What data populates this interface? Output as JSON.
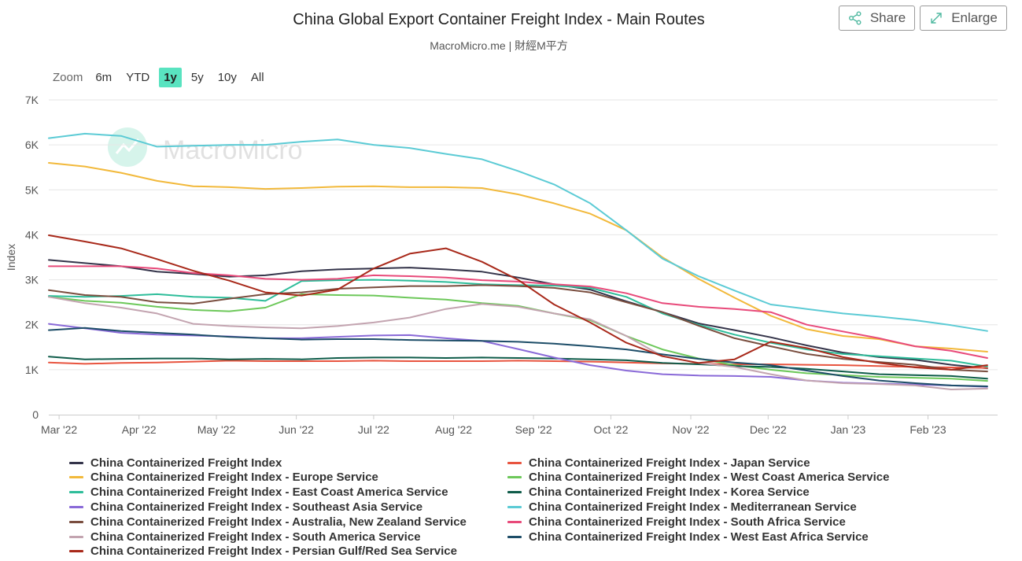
{
  "header": {
    "title": "China Global Export Container Freight Index - Main Routes",
    "subtitle": "MacroMicro.me | 財經M平方",
    "share_label": "Share",
    "enlarge_label": "Enlarge",
    "watermark": "MacroMicro"
  },
  "zoom": {
    "label": "Zoom",
    "options": [
      "6m",
      "YTD",
      "1y",
      "5y",
      "10y",
      "All"
    ],
    "selected": "1y"
  },
  "chart_data": {
    "type": "line",
    "title": "China Global Export Container Freight Index - Main Routes",
    "subtitle": "MacroMicro.me | 財經M平方",
    "ylabel": "Index",
    "xlabel": "",
    "ylim": [
      0,
      7000
    ],
    "y_ticks": [
      0,
      1000,
      2000,
      3000,
      4000,
      5000,
      6000,
      7000
    ],
    "y_tick_labels": [
      "0",
      "1K",
      "2K",
      "3K",
      "4K",
      "5K",
      "6K",
      "7K"
    ],
    "x_range": [
      "2022-02-25",
      "2023-02-28"
    ],
    "x_ticks": [
      "2022-03-01",
      "2022-04-01",
      "2022-05-01",
      "2022-06-01",
      "2022-07-01",
      "2022-08-01",
      "2022-09-01",
      "2022-10-01",
      "2022-11-01",
      "2022-12-01",
      "2023-01-01",
      "2023-02-01"
    ],
    "x_tick_labels": [
      "Mar '22",
      "Apr '22",
      "May '22",
      "Jun '22",
      "Jul '22",
      "Aug '22",
      "Sep '22",
      "Oct '22",
      "Nov '22",
      "Dec '22",
      "Jan '23",
      "Feb '23"
    ],
    "grid": "horizontal",
    "legend_position": "bottom",
    "x": [
      "2022-02-25",
      "2022-03-11",
      "2022-03-25",
      "2022-04-08",
      "2022-04-22",
      "2022-05-06",
      "2022-05-20",
      "2022-06-03",
      "2022-06-17",
      "2022-07-01",
      "2022-07-15",
      "2022-07-29",
      "2022-08-12",
      "2022-08-26",
      "2022-09-09",
      "2022-09-23",
      "2022-10-07",
      "2022-10-21",
      "2022-11-04",
      "2022-11-18",
      "2022-12-02",
      "2022-12-16",
      "2022-12-30",
      "2023-01-13",
      "2023-01-27",
      "2023-02-10",
      "2023-02-24"
    ],
    "series": [
      {
        "name": "China Containerized Freight Index",
        "color": "#34344a",
        "values": [
          3440,
          3370,
          3300,
          3180,
          3130,
          3070,
          3100,
          3190,
          3230,
          3250,
          3270,
          3230,
          3180,
          3050,
          2900,
          2780,
          2520,
          2280,
          2030,
          1880,
          1720,
          1540,
          1380,
          1280,
          1220,
          1110,
          1030
        ]
      },
      {
        "name": "China Containerized Freight Index - Japan Service",
        "color": "#e8543f",
        "values": [
          1160,
          1130,
          1150,
          1160,
          1180,
          1200,
          1190,
          1190,
          1190,
          1200,
          1190,
          1190,
          1190,
          1200,
          1190,
          1180,
          1160,
          1140,
          1130,
          1120,
          1120,
          1110,
          1100,
          1080,
          1060,
          1050,
          1040
        ]
      },
      {
        "name": "China Containerized Freight Index - Europe Service",
        "color": "#f2b93b",
        "values": [
          5600,
          5520,
          5380,
          5200,
          5080,
          5060,
          5020,
          5040,
          5070,
          5080,
          5060,
          5060,
          5040,
          4900,
          4700,
          4470,
          4100,
          3500,
          3020,
          2600,
          2200,
          1900,
          1750,
          1680,
          1520,
          1470,
          1400
        ]
      },
      {
        "name": "China Containerized Freight Index - West Coast America Service",
        "color": "#6dc85a",
        "values": [
          2620,
          2530,
          2490,
          2400,
          2330,
          2300,
          2380,
          2680,
          2660,
          2650,
          2600,
          2560,
          2480,
          2420,
          2250,
          2100,
          1750,
          1450,
          1250,
          1100,
          1000,
          920,
          880,
          840,
          820,
          800,
          750
        ]
      },
      {
        "name": "China Containerized Freight Index - East Coast America Service",
        "color": "#2ebd9a",
        "values": [
          2640,
          2620,
          2640,
          2680,
          2620,
          2600,
          2530,
          2970,
          2990,
          3000,
          2980,
          2950,
          2900,
          2880,
          2870,
          2820,
          2620,
          2250,
          2000,
          1780,
          1600,
          1450,
          1350,
          1300,
          1250,
          1200,
          1070
        ]
      },
      {
        "name": "China Containerized Freight Index - Korea Service",
        "color": "#0f5c4a",
        "values": [
          1290,
          1230,
          1240,
          1250,
          1250,
          1230,
          1240,
          1230,
          1260,
          1270,
          1270,
          1260,
          1270,
          1260,
          1250,
          1230,
          1210,
          1150,
          1120,
          1080,
          1060,
          1020,
          960,
          900,
          880,
          860,
          800
        ]
      },
      {
        "name": "China Containerized Freight Index - Southeast Asia Service",
        "color": "#8a6ad8",
        "values": [
          2020,
          1920,
          1820,
          1780,
          1760,
          1740,
          1700,
          1700,
          1730,
          1760,
          1770,
          1700,
          1640,
          1460,
          1270,
          1100,
          980,
          900,
          870,
          860,
          840,
          760,
          710,
          690,
          670,
          650,
          620
        ]
      },
      {
        "name": "China Containerized Freight Index - Mediterranean Service",
        "color": "#5ccbd5",
        "values": [
          6150,
          6250,
          6200,
          5960,
          5980,
          6000,
          6000,
          6070,
          6120,
          6000,
          5930,
          5800,
          5680,
          5420,
          5120,
          4700,
          4100,
          3470,
          3080,
          2760,
          2450,
          2350,
          2250,
          2180,
          2100,
          1990,
          1860
        ]
      },
      {
        "name": "China Containerized Freight Index - Australia, New Zealand Service",
        "color": "#7a4e3f",
        "values": [
          2770,
          2660,
          2620,
          2500,
          2470,
          2580,
          2680,
          2720,
          2800,
          2830,
          2860,
          2860,
          2880,
          2860,
          2820,
          2720,
          2500,
          2280,
          1980,
          1700,
          1520,
          1350,
          1240,
          1170,
          1110,
          1000,
          960
        ]
      },
      {
        "name": "China Containerized Freight Index - South Africa Service",
        "color": "#e84a7a",
        "values": [
          3300,
          3300,
          3300,
          3250,
          3150,
          3100,
          3020,
          3000,
          3020,
          3100,
          3080,
          3050,
          2990,
          2960,
          2900,
          2850,
          2700,
          2480,
          2400,
          2350,
          2280,
          2000,
          1850,
          1700,
          1520,
          1420,
          1260
        ]
      },
      {
        "name": "China Containerized Freight Index - South America Service",
        "color": "#c3a4b0",
        "values": [
          2620,
          2480,
          2380,
          2250,
          2020,
          1970,
          1940,
          1920,
          1970,
          2050,
          2160,
          2350,
          2460,
          2400,
          2250,
          2120,
          1750,
          1300,
          1150,
          1060,
          900,
          760,
          700,
          680,
          650,
          560,
          580
        ]
      },
      {
        "name": "China Containerized Freight Index - West East Africa Service",
        "color": "#1d4d68",
        "values": [
          1880,
          1930,
          1860,
          1820,
          1780,
          1730,
          1700,
          1670,
          1680,
          1680,
          1660,
          1650,
          1640,
          1620,
          1580,
          1520,
          1450,
          1340,
          1240,
          1160,
          1100,
          980,
          860,
          760,
          700,
          650,
          630
        ]
      },
      {
        "name": "China Containerized Freight Index - Persian Gulf/Red Sea Service",
        "color": "#a8291a",
        "values": [
          3990,
          3850,
          3700,
          3460,
          3200,
          2980,
          2720,
          2650,
          2780,
          3250,
          3580,
          3700,
          3400,
          3000,
          2450,
          2050,
          1600,
          1300,
          1150,
          1230,
          1620,
          1480,
          1280,
          1150,
          1050,
          1000,
          1100
        ]
      }
    ]
  }
}
